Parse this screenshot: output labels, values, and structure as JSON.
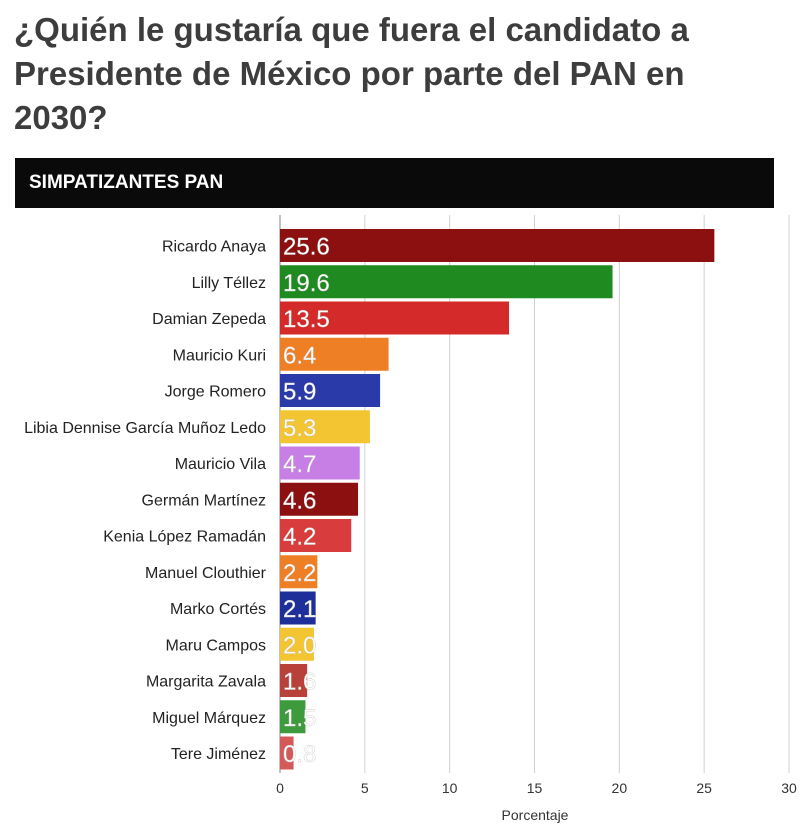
{
  "title": "¿Quién le gustaría que fuera el candidato a Presidente de México por parte del PAN en 2030?",
  "banner": "SIMPATIZANTES PAN",
  "chart_data": {
    "type": "bar",
    "orientation": "horizontal",
    "categories": [
      "Ricardo Anaya",
      "Lilly Téllez",
      "Damian Zepeda",
      "Mauricio Kuri",
      "Jorge Romero",
      "Libia Dennise García Muñoz Ledo",
      "Mauricio Vila",
      "Germán Martínez",
      "Kenia López Ramadán",
      "Manuel Clouthier",
      "Marko Cortés",
      "Maru Campos",
      "Margarita Zavala",
      "Miguel Márquez",
      "Tere Jiménez"
    ],
    "values": [
      25.6,
      19.6,
      13.5,
      6.4,
      5.9,
      5.3,
      4.7,
      4.6,
      4.2,
      2.2,
      2.1,
      2.0,
      1.6,
      1.5,
      0.8
    ],
    "data_labels": [
      "25.6",
      "19.6",
      "13.5",
      "6.4",
      "5.9",
      "5.3",
      "4.7",
      "4.6",
      "4.2",
      "2.2",
      "2.1",
      "2.0",
      "1.6",
      "1.5",
      "0.8"
    ],
    "colors": [
      "#8c1010",
      "#1f8a1f",
      "#d42a2a",
      "#ef7f25",
      "#2a3aa8",
      "#f4c532",
      "#c77fe6",
      "#8c1010",
      "#d83c3c",
      "#ef7f25",
      "#1f2f9a",
      "#f4c532",
      "#b8423a",
      "#3d9a3d",
      "#d45a5a"
    ],
    "xlabel": "Porcentaje",
    "xlim": [
      0,
      30
    ],
    "xticks": [
      0,
      5,
      10,
      15,
      20,
      25,
      30
    ],
    "grid": true
  }
}
